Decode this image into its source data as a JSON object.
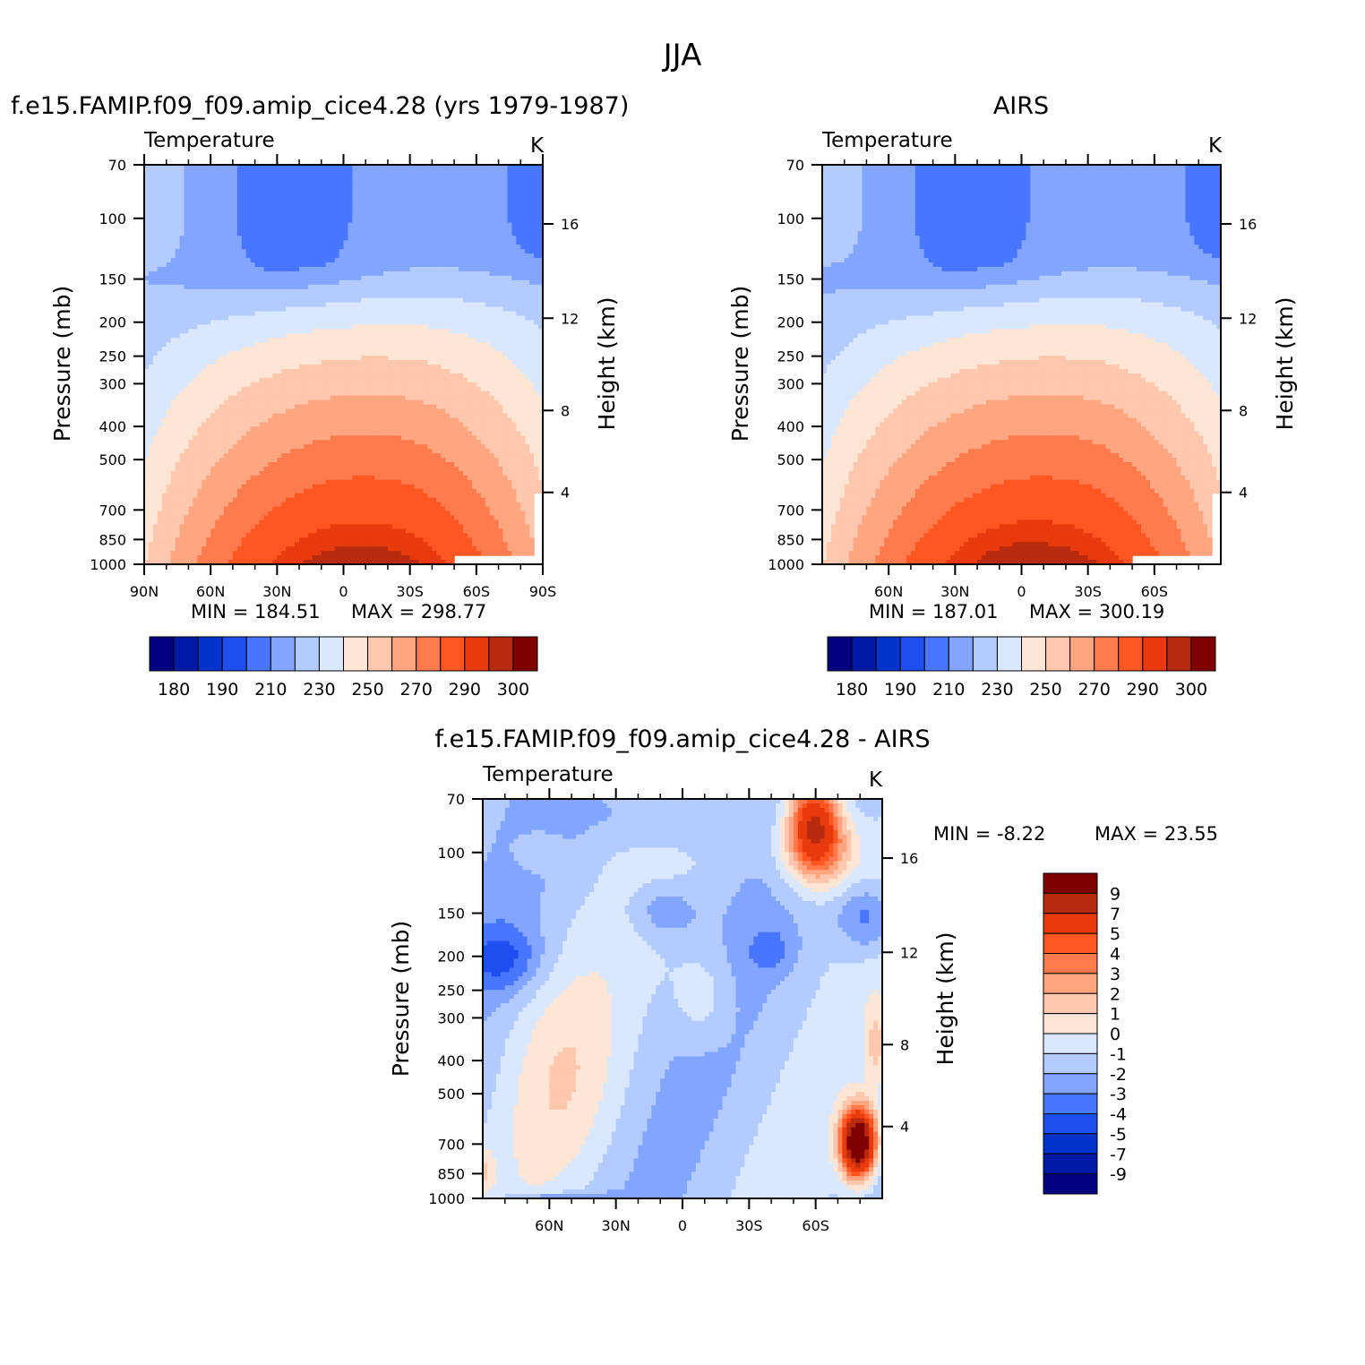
{
  "figure": {
    "title": "JJA"
  },
  "palette": [
    "#000080",
    "#0019a6",
    "#0033cc",
    "#1f4ef0",
    "#4876ff",
    "#82a5ff",
    "#b3cbff",
    "#d9e8ff",
    "#ffe5d4",
    "#ffc7ad",
    "#ffa680",
    "#ff7a4d",
    "#ff5622",
    "#e83a0d",
    "#b82a0e",
    "#800000"
  ],
  "chart_data": [
    {
      "type": "heatmap",
      "title": "f.e15.FAMIP.f09_f09.amip_cice4.28 (yrs 1979-1987)",
      "subtitle_left": "Temperature",
      "subtitle_right": "K",
      "ylabel": "Pressure (mb)",
      "ylabel_right": "Height (km)",
      "x_ticks": [
        "90N",
        "60N",
        "30N",
        "0",
        "30S",
        "60S",
        "90S"
      ],
      "y_ticks": [
        "70",
        "100",
        "150",
        "200",
        "250",
        "300",
        "400",
        "500",
        "700",
        "850",
        "1000"
      ],
      "y_ticks_right": [
        "16",
        "12",
        "8",
        "4"
      ],
      "min_label": "MIN = 184.51",
      "max_label": "MAX = 298.77",
      "min": 184.51,
      "max": 298.77,
      "colorbar_ticks": [
        "180",
        "190",
        "210",
        "230",
        "250",
        "270",
        "290",
        "300"
      ]
    },
    {
      "type": "heatmap",
      "title": "AIRS",
      "subtitle_left": "Temperature",
      "subtitle_right": "K",
      "ylabel": "Pressure (mb)",
      "ylabel_right": "Height (km)",
      "x_ticks": [
        "60N",
        "30N",
        "0",
        "30S",
        "60S"
      ],
      "y_ticks": [
        "70",
        "100",
        "150",
        "200",
        "250",
        "300",
        "400",
        "500",
        "700",
        "850",
        "1000"
      ],
      "y_ticks_right": [
        "16",
        "12",
        "8",
        "4"
      ],
      "min_label": "MIN = 187.01",
      "max_label": "MAX = 300.19",
      "min": 187.01,
      "max": 300.19,
      "colorbar_ticks": [
        "180",
        "190",
        "210",
        "230",
        "250",
        "270",
        "290",
        "300"
      ]
    },
    {
      "type": "heatmap",
      "title": "f.e15.FAMIP.f09_f09.amip_cice4.28 - AIRS",
      "subtitle_left": "Temperature",
      "subtitle_right": "K",
      "ylabel": "Pressure (mb)",
      "ylabel_right": "Height (km)",
      "x_ticks": [
        "60N",
        "30N",
        "0",
        "30S",
        "60S"
      ],
      "y_ticks": [
        "70",
        "100",
        "150",
        "200",
        "250",
        "300",
        "400",
        "500",
        "700",
        "850",
        "1000"
      ],
      "y_ticks_right": [
        "16",
        "12",
        "8",
        "4"
      ],
      "min_label": "MIN = -8.22",
      "max_label": "MAX = 23.55",
      "min": -8.22,
      "max": 23.55,
      "colorbar_ticks": [
        "9",
        "7",
        "5",
        "4",
        "3",
        "2",
        "1",
        "0",
        "-1",
        "-2",
        "-3",
        "-4",
        "-5",
        "-7",
        "-9"
      ]
    }
  ]
}
